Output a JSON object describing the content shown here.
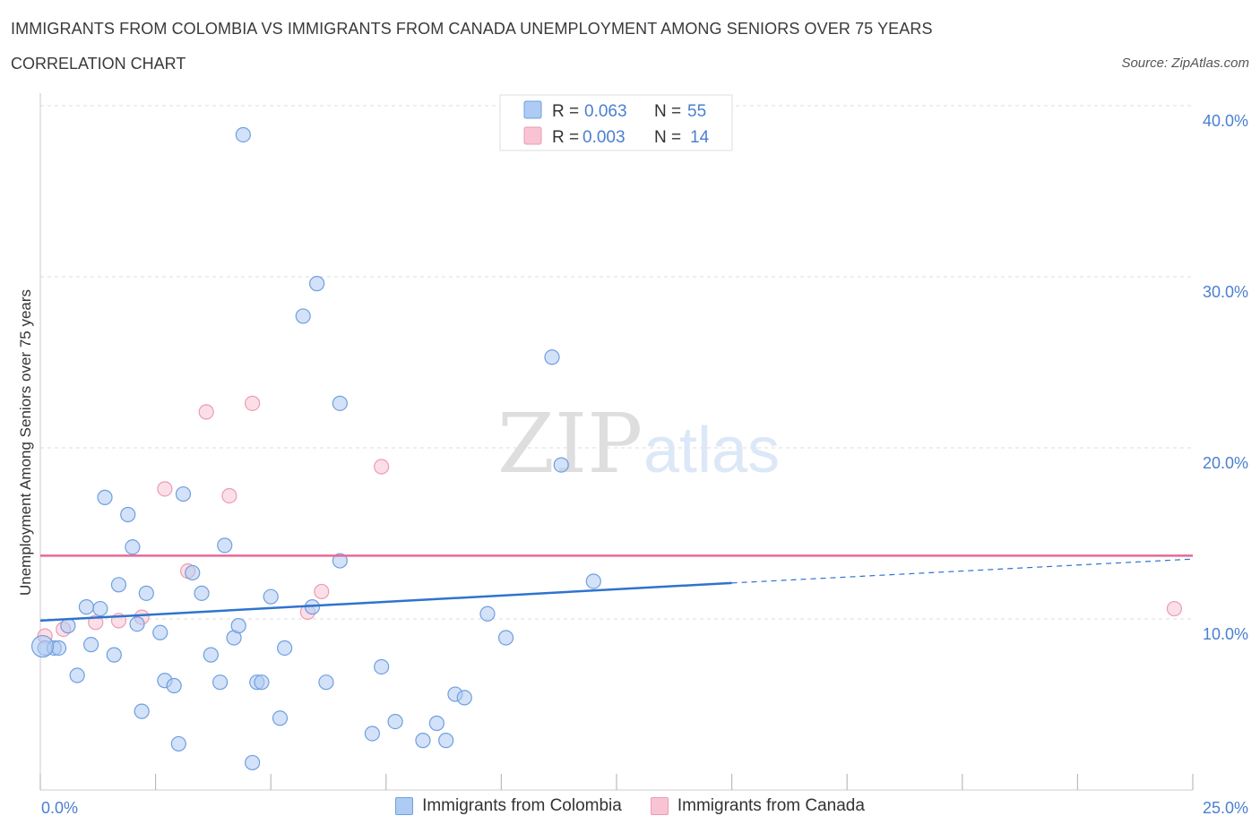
{
  "header": {
    "title": "IMMIGRANTS FROM COLOMBIA VS IMMIGRANTS FROM CANADA UNEMPLOYMENT AMONG SENIORS OVER 75 YEARS",
    "subtitle": "CORRELATION CHART",
    "source": "Source: ZipAtlas.com"
  },
  "watermark": {
    "zip": "ZIP",
    "atlas": "atlas"
  },
  "colors": {
    "colombia_fill": "#aecbf3",
    "colombia_stroke": "#6f9fdf",
    "colombia_line": "#2f73cf",
    "canada_fill": "#f8c4d3",
    "canada_stroke": "#ee9ab3",
    "canada_line": "#e56a93",
    "axis_label": "#4a7fd0",
    "grid": "#dddddd"
  },
  "stats_legend": [
    {
      "r_label": "R = ",
      "r_value": "0.063",
      "n_label": "N = ",
      "n_value": "55"
    },
    {
      "r_label": "R = ",
      "r_value": "0.003",
      "n_label": "N = ",
      "n_value": "14"
    }
  ],
  "chart_data": {
    "type": "scatter",
    "title": "IMMIGRANTS FROM COLOMBIA VS IMMIGRANTS FROM CANADA UNEMPLOYMENT AMONG SENIORS OVER 75 YEARS",
    "ylabel": "Unemployment Among Seniors over 75 years",
    "xlabel": "",
    "xlim": [
      0,
      25
    ],
    "ylim": [
      0,
      40
    ],
    "x_tick_labels": [
      "0.0%",
      "25.0%"
    ],
    "y_ticks": [
      10,
      20,
      30,
      40
    ],
    "y_tick_labels": [
      "10.0%",
      "20.0%",
      "30.0%",
      "40.0%"
    ],
    "series": [
      {
        "name": "Immigrants from Colombia",
        "r": 0.063,
        "n": 55,
        "trend": {
          "x": [
            0,
            15
          ],
          "y": [
            9.9,
            12.1
          ],
          "dashed_to": [
            25,
            13.5
          ]
        },
        "points": [
          [
            0.1,
            8.3
          ],
          [
            0.3,
            8.3
          ],
          [
            0.4,
            8.3
          ],
          [
            0.6,
            9.6
          ],
          [
            0.8,
            6.7
          ],
          [
            1.0,
            10.7
          ],
          [
            1.1,
            8.5
          ],
          [
            1.3,
            10.6
          ],
          [
            1.4,
            17.1
          ],
          [
            1.6,
            7.9
          ],
          [
            1.7,
            12.0
          ],
          [
            1.9,
            16.1
          ],
          [
            2.0,
            14.2
          ],
          [
            2.1,
            9.7
          ],
          [
            2.2,
            4.6
          ],
          [
            2.3,
            11.5
          ],
          [
            2.6,
            9.2
          ],
          [
            2.7,
            6.4
          ],
          [
            2.9,
            6.1
          ],
          [
            3.1,
            17.3
          ],
          [
            3.0,
            2.7
          ],
          [
            3.3,
            12.7
          ],
          [
            3.5,
            11.5
          ],
          [
            3.7,
            7.9
          ],
          [
            3.9,
            6.3
          ],
          [
            4.0,
            14.3
          ],
          [
            4.2,
            8.9
          ],
          [
            4.3,
            9.6
          ],
          [
            4.4,
            38.3
          ],
          [
            4.6,
            1.6
          ],
          [
            4.7,
            6.3
          ],
          [
            4.8,
            6.3
          ],
          [
            5.0,
            11.3
          ],
          [
            5.2,
            4.2
          ],
          [
            5.3,
            8.3
          ],
          [
            5.7,
            27.7
          ],
          [
            5.9,
            10.7
          ],
          [
            6.0,
            29.6
          ],
          [
            6.2,
            6.3
          ],
          [
            6.5,
            22.6
          ],
          [
            6.5,
            13.4
          ],
          [
            7.2,
            3.3
          ],
          [
            7.4,
            7.2
          ],
          [
            7.7,
            4.0
          ],
          [
            8.3,
            2.9
          ],
          [
            8.6,
            3.9
          ],
          [
            8.8,
            2.9
          ],
          [
            9.0,
            5.6
          ],
          [
            9.2,
            5.4
          ],
          [
            9.7,
            10.3
          ],
          [
            10.1,
            8.9
          ],
          [
            11.1,
            25.3
          ],
          [
            11.3,
            19.0
          ],
          [
            12.0,
            12.2
          ],
          [
            0.05,
            8.4
          ]
        ]
      },
      {
        "name": "Immigrants from Canada",
        "r": 0.003,
        "n": 14,
        "trend": {
          "x": [
            0,
            25
          ],
          "y": [
            13.7,
            13.7
          ]
        },
        "points": [
          [
            0.1,
            9.0
          ],
          [
            0.5,
            9.4
          ],
          [
            1.2,
            9.8
          ],
          [
            1.7,
            9.9
          ],
          [
            2.2,
            10.1
          ],
          [
            2.7,
            17.6
          ],
          [
            3.2,
            12.8
          ],
          [
            3.6,
            22.1
          ],
          [
            4.1,
            17.2
          ],
          [
            4.6,
            22.6
          ],
          [
            5.8,
            10.4
          ],
          [
            6.1,
            11.6
          ],
          [
            7.4,
            18.9
          ],
          [
            24.6,
            10.6
          ]
        ]
      }
    ],
    "legend": [
      "Immigrants from Colombia",
      "Immigrants from Canada"
    ]
  }
}
